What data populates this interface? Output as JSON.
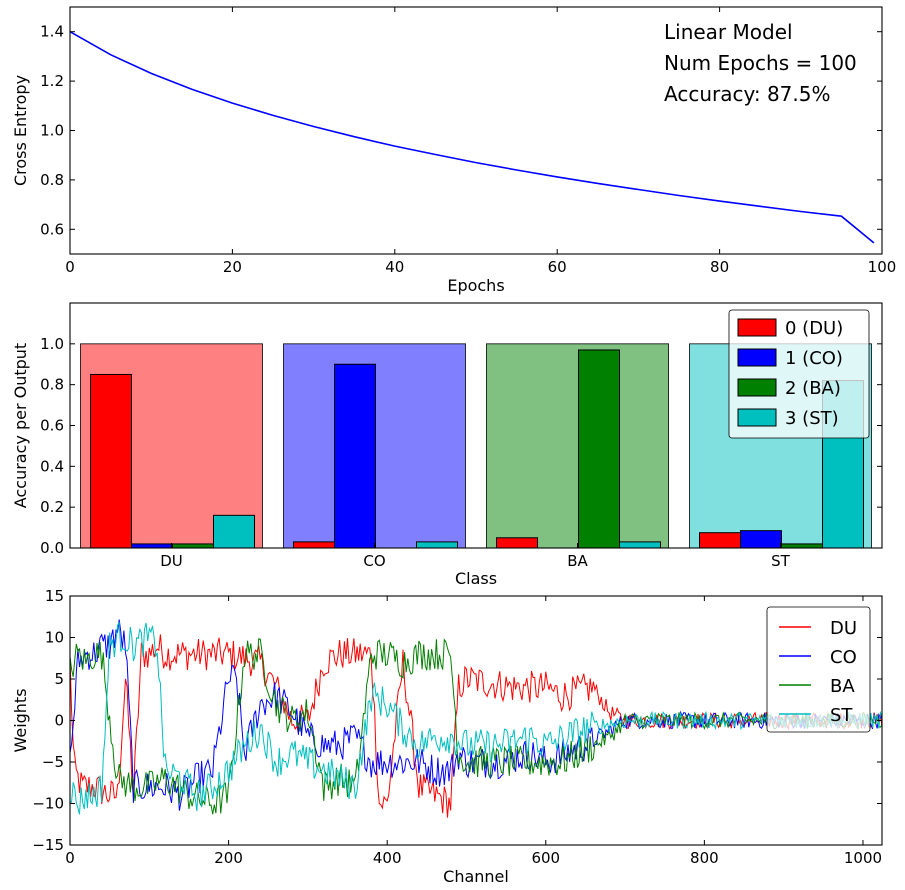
{
  "chart_data": [
    {
      "type": "line",
      "xlabel": "Epochs",
      "ylabel": "Cross Entropy",
      "xlim": [
        0,
        100
      ],
      "ylim": [
        0.5,
        1.5
      ],
      "xticks": [
        "0",
        "20",
        "40",
        "60",
        "80",
        "100"
      ],
      "yticks": [
        "0.6",
        "0.8",
        "1.0",
        "1.2",
        "1.4"
      ],
      "annotations": [
        "Linear Model",
        "Num Epochs = 100",
        "Accuracy: 87.5%"
      ],
      "series": [
        {
          "color": "#0000ff",
          "x": [
            0,
            5,
            10,
            15,
            20,
            25,
            30,
            35,
            40,
            45,
            50,
            55,
            60,
            65,
            70,
            75,
            80,
            85,
            90,
            95,
            99
          ],
          "y": [
            1.4,
            1.307,
            1.231,
            1.167,
            1.111,
            1.061,
            1.016,
            0.975,
            0.937,
            0.903,
            0.87,
            0.84,
            0.812,
            0.786,
            0.761,
            0.737,
            0.714,
            0.693,
            0.672,
            0.653,
            0.545
          ]
        }
      ]
    },
    {
      "type": "bar",
      "xlabel": "Class",
      "ylabel": "Accuracy per Output",
      "ylim": [
        0,
        1.2
      ],
      "yticks": [
        "0.0",
        "0.2",
        "0.4",
        "0.6",
        "0.8",
        "1.0"
      ],
      "categories": [
        "DU",
        "CO",
        "BA",
        "ST"
      ],
      "background_colors": [
        "#ff8080",
        "#8080ff",
        "#80c080",
        "#80e0e0"
      ],
      "background_value": 1.0,
      "legend_position": "top-right",
      "series": [
        {
          "name": "0 (DU)",
          "color": "#ff0000",
          "values": [
            0.85,
            0.03,
            0.05,
            0.075
          ]
        },
        {
          "name": "1 (CO)",
          "color": "#0000ff",
          "values": [
            0.02,
            0.9,
            0.0,
            0.085
          ]
        },
        {
          "name": "2 (BA)",
          "color": "#008000",
          "values": [
            0.02,
            0.0,
            0.97,
            0.02
          ]
        },
        {
          "name": "3 (ST)",
          "color": "#00bfbf",
          "values": [
            0.16,
            0.03,
            0.03,
            0.82
          ]
        }
      ]
    },
    {
      "type": "line",
      "xlabel": "Channel",
      "ylabel": "Weights",
      "xlim": [
        0,
        1024
      ],
      "ylim": [
        -15,
        15
      ],
      "xticks": [
        "0",
        "200",
        "400",
        "600",
        "800",
        "1000"
      ],
      "yticks": [
        "−15",
        "−10",
        "−5",
        "0",
        "5",
        "10",
        "15"
      ],
      "legend_position": "top-right",
      "series": [
        {
          "name": "DU",
          "color": "#ff0000",
          "x": [
            0,
            5,
            15,
            30,
            50,
            60,
            70,
            80,
            90,
            100,
            110,
            120,
            200,
            240,
            260,
            280,
            300,
            320,
            340,
            360,
            380,
            390,
            400,
            420,
            440,
            460,
            480,
            490,
            500,
            560,
            600,
            620,
            660,
            680,
            700,
            800,
            900,
            1024
          ],
          "y": [
            7,
            -6,
            -8,
            -8,
            -9,
            -9,
            5,
            -9,
            8,
            8,
            9,
            8,
            8,
            7,
            4,
            0,
            0,
            7,
            8,
            8,
            8,
            -10,
            -10,
            7,
            -8,
            -9,
            -10,
            4,
            5,
            4,
            4,
            3,
            4,
            1,
            0,
            0,
            0,
            0
          ]
        },
        {
          "name": "CO",
          "color": "#0000ff",
          "x": [
            0,
            10,
            20,
            30,
            40,
            50,
            60,
            70,
            80,
            100,
            120,
            140,
            160,
            180,
            200,
            210,
            220,
            240,
            260,
            280,
            300,
            320,
            340,
            360,
            380,
            400,
            420,
            440,
            460,
            480,
            490,
            500,
            540,
            580,
            600,
            650,
            700,
            800,
            900,
            1024
          ],
          "y": [
            -5,
            7,
            8,
            8,
            9,
            9,
            11,
            9,
            -8,
            -8,
            -8,
            -9,
            -7,
            -6,
            5,
            5,
            -4,
            2,
            3,
            1,
            -2,
            -3,
            -3,
            -2,
            -5,
            -5,
            -5,
            -5,
            -6,
            -6,
            -4,
            -5,
            -5,
            -4,
            -5,
            -3,
            0,
            0,
            0,
            0
          ]
        },
        {
          "name": "BA",
          "color": "#008000",
          "x": [
            0,
            10,
            20,
            30,
            40,
            60,
            80,
            100,
            120,
            150,
            180,
            200,
            220,
            240,
            260,
            280,
            300,
            320,
            340,
            360,
            380,
            400,
            420,
            440,
            460,
            480,
            490,
            500,
            560,
            600,
            620,
            680,
            700,
            800,
            900,
            1024
          ],
          "y": [
            6,
            8,
            7,
            8,
            8,
            -7,
            -8,
            -8,
            -7,
            -9,
            -10,
            -9,
            8,
            8,
            2,
            0,
            1,
            -8,
            -7,
            -8,
            8,
            8,
            7,
            8,
            8,
            8,
            -4,
            -5,
            -5,
            -5,
            -5,
            -2,
            0,
            0,
            0,
            0
          ]
        },
        {
          "name": "ST",
          "color": "#00bfbf",
          "x": [
            0,
            10,
            20,
            30,
            40,
            50,
            60,
            70,
            80,
            100,
            110,
            120,
            140,
            160,
            180,
            200,
            220,
            240,
            260,
            280,
            300,
            320,
            340,
            360,
            380,
            400,
            420,
            440,
            460,
            480,
            500,
            540,
            580,
            600,
            650,
            700,
            800,
            900,
            1024
          ],
          "y": [
            -8,
            -10,
            -9,
            -9,
            -8,
            9,
            10,
            10,
            9,
            10,
            9,
            -6,
            -7,
            -9,
            -8,
            -6,
            -3,
            -1,
            -5,
            -4,
            -5,
            -6,
            -7,
            -8,
            3,
            2,
            -1,
            -3,
            -2,
            -2,
            -3,
            -3,
            -2,
            -3,
            -1,
            0,
            0,
            0,
            0
          ]
        }
      ]
    }
  ]
}
